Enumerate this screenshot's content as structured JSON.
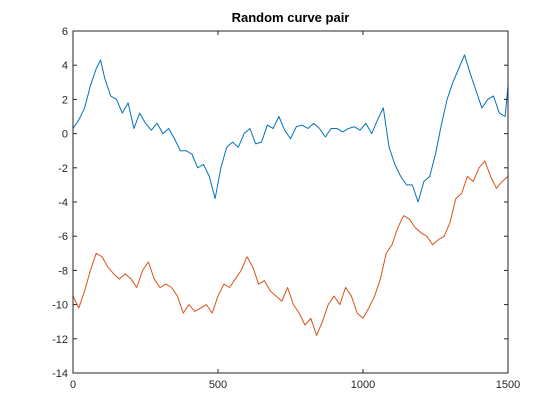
{
  "chart_data": {
    "type": "line",
    "title": "Random curve pair",
    "xlabel": "",
    "ylabel": "",
    "xlim": [
      0,
      1500
    ],
    "ylim": [
      -14,
      6
    ],
    "xticks": [
      0,
      500,
      1000,
      1500
    ],
    "yticks": [
      -14,
      -12,
      -10,
      -8,
      -6,
      -4,
      -2,
      0,
      2,
      4,
      6
    ],
    "grid": false,
    "legend": "none",
    "series": [
      {
        "color": "#0072BD",
        "x": [
          0,
          20,
          40,
          60,
          80,
          95,
          110,
          130,
          150,
          170,
          190,
          210,
          230,
          250,
          270,
          290,
          310,
          330,
          350,
          370,
          390,
          410,
          430,
          450,
          470,
          490,
          510,
          530,
          550,
          570,
          590,
          610,
          630,
          650,
          670,
          690,
          710,
          730,
          750,
          770,
          790,
          810,
          830,
          850,
          870,
          890,
          910,
          930,
          950,
          970,
          990,
          1010,
          1030,
          1050,
          1070,
          1090,
          1110,
          1130,
          1150,
          1170,
          1190,
          1210,
          1230,
          1250,
          1270,
          1290,
          1310,
          1330,
          1350,
          1370,
          1390,
          1410,
          1430,
          1450,
          1470,
          1490,
          1500
        ],
        "y": [
          0.3,
          0.8,
          1.5,
          2.8,
          3.8,
          4.3,
          3.2,
          2.2,
          2.0,
          1.2,
          1.8,
          0.3,
          1.2,
          0.6,
          0.2,
          0.6,
          0.0,
          0.3,
          -0.3,
          -1.0,
          -1.0,
          -1.2,
          -2.0,
          -1.8,
          -2.5,
          -3.8,
          -2.0,
          -0.8,
          -0.5,
          -0.8,
          0.0,
          0.3,
          -0.6,
          -0.5,
          0.5,
          0.3,
          1.0,
          0.2,
          -0.3,
          0.4,
          0.5,
          0.3,
          0.6,
          0.3,
          -0.2,
          0.3,
          0.3,
          0.1,
          0.3,
          0.4,
          0.2,
          0.6,
          0.0,
          0.8,
          1.5,
          -0.8,
          -1.8,
          -2.5,
          -3.0,
          -3.0,
          -4.0,
          -2.8,
          -2.5,
          -1.2,
          0.5,
          2.0,
          3.0,
          3.8,
          4.6,
          3.5,
          2.5,
          1.5,
          2.0,
          2.2,
          1.2,
          1.0,
          2.8
        ]
      },
      {
        "color": "#D95319",
        "x": [
          0,
          20,
          40,
          60,
          80,
          100,
          120,
          140,
          160,
          180,
          200,
          220,
          240,
          260,
          280,
          300,
          320,
          340,
          360,
          380,
          400,
          420,
          440,
          460,
          480,
          500,
          520,
          540,
          560,
          580,
          600,
          620,
          640,
          660,
          680,
          700,
          720,
          740,
          760,
          780,
          800,
          820,
          840,
          860,
          880,
          900,
          920,
          940,
          960,
          980,
          1000,
          1020,
          1040,
          1060,
          1080,
          1100,
          1120,
          1140,
          1160,
          1180,
          1200,
          1220,
          1240,
          1260,
          1280,
          1300,
          1320,
          1340,
          1360,
          1380,
          1400,
          1420,
          1440,
          1460,
          1480,
          1500
        ],
        "y": [
          -9.5,
          -10.2,
          -9.2,
          -8.0,
          -7.0,
          -7.2,
          -7.8,
          -8.2,
          -8.5,
          -8.2,
          -8.5,
          -9.0,
          -8.0,
          -7.5,
          -8.5,
          -9.0,
          -8.8,
          -9.0,
          -9.5,
          -10.5,
          -10.0,
          -10.4,
          -10.2,
          -10.0,
          -10.5,
          -9.5,
          -8.8,
          -9.0,
          -8.5,
          -8.0,
          -7.2,
          -7.8,
          -8.8,
          -8.6,
          -9.2,
          -9.5,
          -9.8,
          -9.0,
          -10.0,
          -10.5,
          -11.2,
          -10.8,
          -11.8,
          -11.0,
          -10.0,
          -9.5,
          -10.0,
          -9.0,
          -9.5,
          -10.5,
          -10.8,
          -10.2,
          -9.5,
          -8.5,
          -7.0,
          -6.5,
          -5.5,
          -4.8,
          -5.0,
          -5.5,
          -5.8,
          -6.0,
          -6.5,
          -6.2,
          -6.0,
          -5.2,
          -3.8,
          -3.5,
          -2.5,
          -2.8,
          -2.0,
          -1.6,
          -2.5,
          -3.2,
          -2.8,
          -2.5
        ]
      }
    ]
  }
}
